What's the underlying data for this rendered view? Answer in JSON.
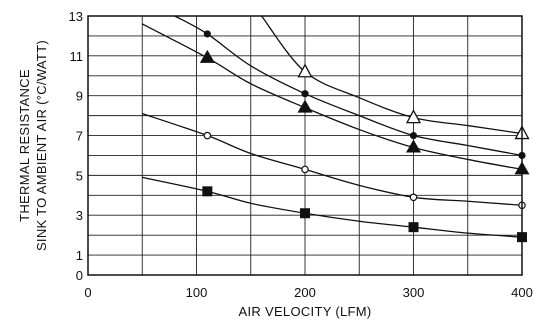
{
  "chart_data": {
    "type": "line",
    "title": "",
    "xlabel": "AIR VELOCITY (LFM)",
    "ylabel_lines": [
      "THERMAL RESISTANCE",
      "SINK TO AMBIENT AIR (°C/WATT)"
    ],
    "xlim": [
      0,
      400
    ],
    "ylim": [
      0,
      13
    ],
    "x_ticks": [
      0,
      100,
      200,
      300,
      400
    ],
    "y_ticks": [
      0,
      1,
      3,
      5,
      7,
      9,
      11,
      13
    ],
    "grid": true,
    "legend": "none",
    "series": [
      {
        "marker": "triangle-open",
        "x": [
          200,
          300,
          400
        ],
        "y": [
          10.2,
          7.9,
          7.1
        ],
        "curve_x": [
          160,
          200,
          250,
          300,
          350,
          400
        ],
        "curve_y": [
          13.0,
          10.2,
          8.9,
          7.9,
          7.5,
          7.1
        ]
      },
      {
        "marker": "circle-filled",
        "x": [
          110,
          200,
          300,
          400
        ],
        "y": [
          12.1,
          9.1,
          7.0,
          6.0
        ],
        "curve_x": [
          80,
          110,
          150,
          200,
          250,
          300,
          350,
          400
        ],
        "curve_y": [
          13.0,
          12.1,
          10.5,
          9.1,
          8.0,
          7.0,
          6.5,
          6.0
        ]
      },
      {
        "marker": "triangle-filled",
        "x": [
          110,
          200,
          300,
          400
        ],
        "y": [
          10.9,
          8.4,
          6.4,
          5.3
        ],
        "curve_x": [
          50,
          110,
          150,
          200,
          250,
          300,
          350,
          400
        ],
        "curve_y": [
          12.6,
          10.9,
          9.6,
          8.4,
          7.3,
          6.4,
          5.8,
          5.3
        ]
      },
      {
        "marker": "circle-open",
        "x": [
          110,
          200,
          300,
          400
        ],
        "y": [
          7.0,
          5.3,
          3.9,
          3.5
        ],
        "curve_x": [
          50,
          110,
          150,
          200,
          250,
          300,
          350,
          400
        ],
        "curve_y": [
          8.1,
          7.0,
          6.1,
          5.3,
          4.5,
          3.9,
          3.7,
          3.5
        ]
      },
      {
        "marker": "square-filled",
        "x": [
          110,
          200,
          300,
          400
        ],
        "y": [
          4.2,
          3.1,
          2.4,
          1.9
        ],
        "curve_x": [
          50,
          110,
          150,
          200,
          250,
          300,
          350,
          400
        ],
        "curve_y": [
          4.9,
          4.2,
          3.6,
          3.1,
          2.7,
          2.4,
          2.1,
          1.9
        ]
      }
    ]
  }
}
